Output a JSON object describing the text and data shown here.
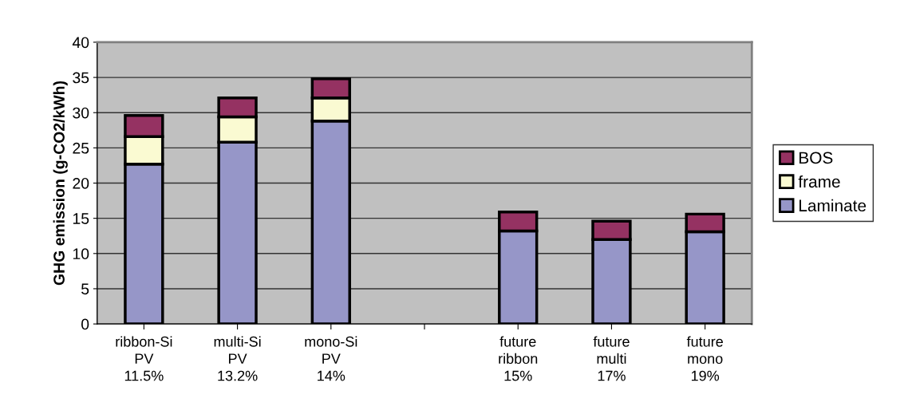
{
  "chart_data": {
    "type": "bar",
    "stacked": true,
    "ylabel": "GHG emission (g-CO2/kWh)",
    "categories": [
      "ribbon-Si\nPV\n11.5%",
      "multi-Si\nPV\n13.2%",
      "mono-Si\nPV\n14%",
      null,
      "future\nribbon\n15%",
      "future\nmulti\n17%",
      "future\nmono\n19%"
    ],
    "series": [
      {
        "name": "Laminate",
        "color": "#9696c8",
        "values": [
          22.7,
          25.8,
          28.8,
          null,
          13.2,
          12.0,
          13.1
        ]
      },
      {
        "name": "frame",
        "color": "#fafad2",
        "values": [
          3.9,
          3.6,
          3.3,
          null,
          null,
          null,
          null
        ]
      },
      {
        "name": "BOS",
        "color": "#953262",
        "values": [
          3.0,
          2.7,
          2.7,
          null,
          2.7,
          2.6,
          2.5
        ]
      }
    ],
    "ylim": [
      0,
      40
    ],
    "yticks": [
      0,
      5,
      10,
      15,
      20,
      25,
      30,
      35,
      40
    ],
    "grid": "y",
    "legend": "right"
  }
}
